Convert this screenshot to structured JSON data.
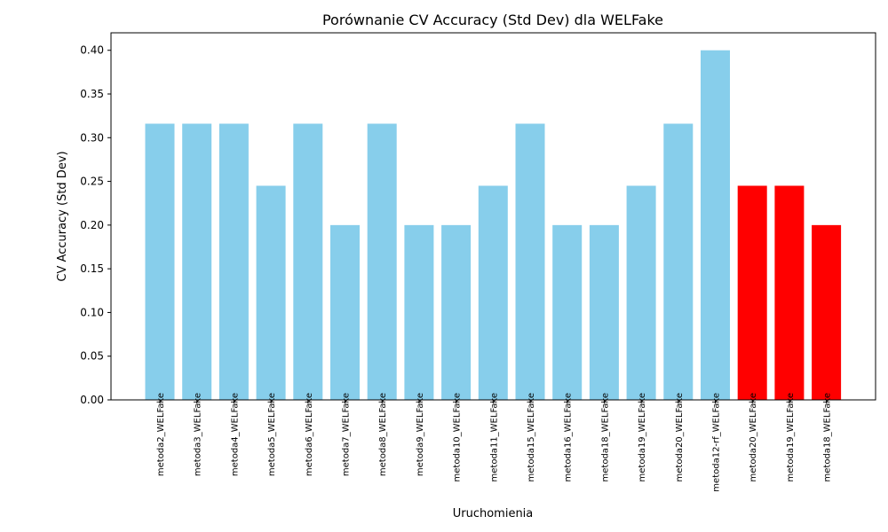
{
  "chart_data": {
    "type": "bar",
    "title": "Porównanie CV Accuracy (Std Dev) dla WELFake",
    "xlabel": "Uruchomienia",
    "ylabel": "CV Accuracy (Std Dev)",
    "ylim": [
      0,
      0.42
    ],
    "yticks": [
      "0.00",
      "0.05",
      "0.10",
      "0.15",
      "0.20",
      "0.25",
      "0.30",
      "0.35",
      "0.40"
    ],
    "categories": [
      "metoda2_WELFake",
      "metoda3_WELFake",
      "metoda4_WELFake",
      "metoda5_WELFake",
      "metoda6_WELFake",
      "metoda7_WELFake",
      "metoda8_WELFake",
      "metoda9_WELFake",
      "metoda10_WELFake",
      "metoda11_WELFake",
      "metoda15_WELFake",
      "metoda16_WELFake",
      "metoda18_WELFake",
      "metoda19_WELFake",
      "metoda20_WELFake",
      "metoda12-rf_WELFake",
      "metoda20_WELFake",
      "metoda19_WELFake",
      "metoda18_WELFake"
    ],
    "values": [
      0.316,
      0.316,
      0.316,
      0.245,
      0.316,
      0.2,
      0.316,
      0.2,
      0.2,
      0.245,
      0.316,
      0.2,
      0.2,
      0.245,
      0.316,
      0.4,
      0.245,
      0.245,
      0.2
    ],
    "bar_colors": [
      "#87CEEB",
      "#87CEEB",
      "#87CEEB",
      "#87CEEB",
      "#87CEEB",
      "#87CEEB",
      "#87CEEB",
      "#87CEEB",
      "#87CEEB",
      "#87CEEB",
      "#87CEEB",
      "#87CEEB",
      "#87CEEB",
      "#87CEEB",
      "#87CEEB",
      "#87CEEB",
      "#FF0000",
      "#FF0000",
      "#FF0000"
    ],
    "grid": false,
    "legend": "none"
  }
}
